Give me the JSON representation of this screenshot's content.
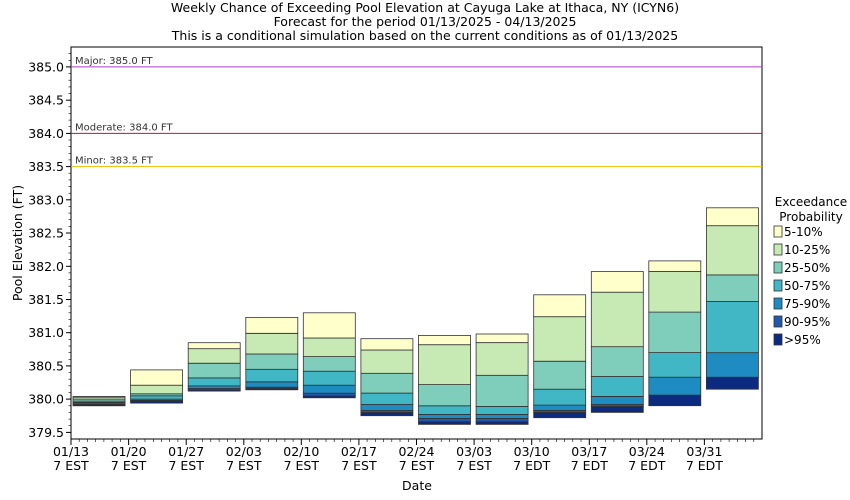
{
  "titles": [
    "Weekly Chance of Exceeding Pool Elevation at Cayuga Lake at Ithaca, NY (ICYN6)",
    "Forecast for the period 01/13/2025 - 04/13/2025",
    "This is a conditional simulation based on the current conditions as of 01/13/2025"
  ],
  "chart_data": {
    "type": "bar",
    "stacked": true,
    "xlabel": "Date",
    "ylabel": "Pool Elevation (FT)",
    "ylim": [
      379.4,
      385.3
    ],
    "yticks": [
      "379.5",
      "380.0",
      "380.5",
      "381.0",
      "381.5",
      "382.0",
      "382.5",
      "383.0",
      "383.5",
      "384.0",
      "384.5",
      "385.0"
    ],
    "grid": false,
    "legend_title": [
      "Exceedance",
      "Probability"
    ],
    "legend_position": "right",
    "categories": [
      [
        "01/13",
        "7 EST"
      ],
      [
        "01/20",
        "7 EST"
      ],
      [
        "01/27",
        "7 EST"
      ],
      [
        "02/03",
        "7 EST"
      ],
      [
        "02/10",
        "7 EST"
      ],
      [
        "02/17",
        "7 EST"
      ],
      [
        "02/24",
        "7 EST"
      ],
      [
        "03/03",
        "7 EST"
      ],
      [
        "03/10",
        "7 EDT"
      ],
      [
        "03/17",
        "7 EDT"
      ],
      [
        "03/24",
        "7 EDT"
      ],
      [
        "03/31",
        "7 EDT"
      ]
    ],
    "thresholds": [
      {
        "label": "Major: 385.0 FT",
        "value": 385.0,
        "color": "#b03fc4"
      },
      {
        "label": "Moderate: 384.0 FT",
        "value": 384.0,
        "color": "#c8102e"
      },
      {
        "label": "Minor: 383.5 FT",
        "value": 383.5,
        "color": "#e8c000"
      }
    ],
    "series_bottom": [
      379.9,
      379.94,
      380.12,
      380.14,
      380.02,
      379.75,
      379.62,
      379.62,
      379.72,
      379.8,
      379.9,
      380.15
    ],
    "series": [
      {
        "name": ">95%",
        "color": "#0c2a80",
        "tops": [
          379.92,
          379.97,
          380.14,
          380.16,
          380.05,
          379.8,
          379.66,
          379.66,
          379.8,
          379.89,
          380.06,
          380.33
        ]
      },
      {
        "name": "90-95%",
        "color": "#2458a8",
        "tops": [
          379.93,
          379.98,
          380.16,
          380.18,
          380.09,
          379.83,
          379.71,
          379.71,
          379.83,
          379.92,
          380.06,
          380.33
        ]
      },
      {
        "name": "75-90%",
        "color": "#1e8cc0",
        "tops": [
          379.95,
          380.0,
          380.2,
          380.26,
          380.21,
          379.92,
          379.77,
          379.77,
          379.91,
          380.04,
          380.33,
          380.7
        ]
      },
      {
        "name": "50-75%",
        "color": "#41b6c4",
        "tops": [
          379.97,
          380.05,
          380.32,
          380.45,
          380.42,
          380.09,
          379.9,
          379.89,
          380.15,
          380.34,
          380.7,
          381.47
        ]
      },
      {
        "name": "25-50%",
        "color": "#7fcdbb",
        "tops": [
          380.0,
          380.08,
          380.54,
          380.68,
          380.64,
          380.39,
          380.22,
          380.36,
          380.57,
          380.79,
          381.31,
          381.87
        ]
      },
      {
        "name": "10-25%",
        "color": "#c7e9b4",
        "tops": [
          380.03,
          380.21,
          380.76,
          380.99,
          380.92,
          380.74,
          380.82,
          380.85,
          381.24,
          381.61,
          381.92,
          382.61
        ]
      },
      {
        "name": "5-10%",
        "color": "#ffffcc",
        "tops": [
          380.04,
          380.44,
          380.85,
          381.23,
          381.3,
          380.91,
          380.96,
          380.98,
          381.57,
          381.92,
          382.08,
          382.88
        ]
      }
    ]
  }
}
